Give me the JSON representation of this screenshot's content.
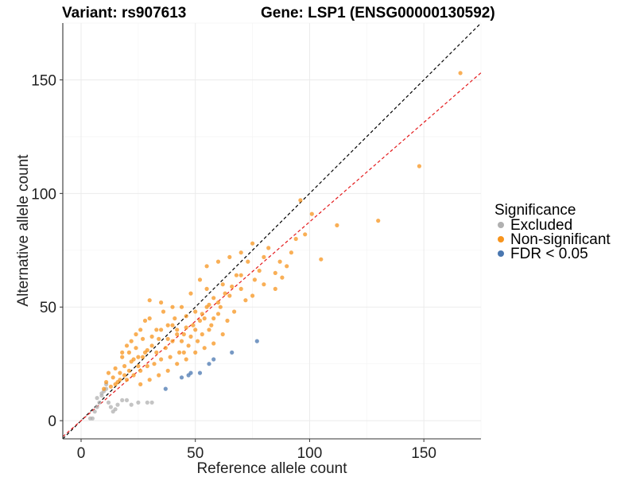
{
  "chart_data": {
    "type": "scatter",
    "title_left": "Variant: rs907613",
    "title_right": "Gene: LSP1 (ENSG00000130592)",
    "xlabel": "Reference allele count",
    "ylabel": "Alternative allele count",
    "xlim": [
      -8,
      175
    ],
    "ylim": [
      -8,
      175
    ],
    "x_ticks": [
      0,
      50,
      100,
      150
    ],
    "y_ticks": [
      0,
      50,
      100,
      150
    ],
    "grid": true,
    "legend": {
      "title": "Significance",
      "position": "right",
      "entries": [
        {
          "label": "Excluded",
          "color": "#b0b0b0"
        },
        {
          "label": "Non-significant",
          "color": "#f7941d"
        },
        {
          "label": "FDR < 0.05",
          "color": "#4a77b0"
        }
      ]
    },
    "reference_lines": [
      {
        "style": "dashed",
        "color": "#000000",
        "slope": 1.0,
        "intercept": 0
      },
      {
        "style": "dashed",
        "color": "#e41a1c",
        "slope": 0.875,
        "intercept": 0
      }
    ],
    "series": [
      {
        "name": "Excluded",
        "color": "#b0b0b0",
        "points": [
          [
            4,
            1
          ],
          [
            5,
            1
          ],
          [
            6,
            4
          ],
          [
            7,
            6
          ],
          [
            8,
            8
          ],
          [
            7,
            10
          ],
          [
            9,
            11
          ],
          [
            10,
            13
          ],
          [
            11,
            16
          ],
          [
            12,
            8
          ],
          [
            13,
            6
          ],
          [
            14,
            4
          ],
          [
            15,
            5
          ],
          [
            16,
            7
          ],
          [
            18,
            9
          ],
          [
            20,
            9
          ],
          [
            22,
            7
          ],
          [
            25,
            8
          ],
          [
            29,
            8
          ],
          [
            31,
            8
          ],
          [
            9,
            12
          ],
          [
            11,
            14
          ]
        ]
      },
      {
        "name": "Non-significant",
        "color": "#f7941d",
        "points": [
          [
            166,
            153
          ],
          [
            148,
            112
          ],
          [
            130,
            88
          ],
          [
            112,
            86
          ],
          [
            105,
            71
          ],
          [
            101,
            91
          ],
          [
            96,
            97
          ],
          [
            98,
            82
          ],
          [
            94,
            80
          ],
          [
            92,
            74
          ],
          [
            90,
            68
          ],
          [
            88,
            63
          ],
          [
            87,
            70
          ],
          [
            85,
            58
          ],
          [
            82,
            76
          ],
          [
            80,
            60
          ],
          [
            78,
            66
          ],
          [
            76,
            62
          ],
          [
            75,
            55
          ],
          [
            73,
            70
          ],
          [
            72,
            53
          ],
          [
            70,
            58
          ],
          [
            68,
            64
          ],
          [
            67,
            48
          ],
          [
            65,
            55
          ],
          [
            64,
            44
          ],
          [
            62,
            60
          ],
          [
            61,
            50
          ],
          [
            60,
            47
          ],
          [
            58,
            54
          ],
          [
            57,
            42
          ],
          [
            56,
            40
          ],
          [
            55,
            58
          ],
          [
            54,
            45
          ],
          [
            53,
            38
          ],
          [
            52,
            62
          ],
          [
            51,
            35
          ],
          [
            50,
            48
          ],
          [
            49,
            42
          ],
          [
            48,
            56
          ],
          [
            47,
            33
          ],
          [
            46,
            46
          ],
          [
            45,
            38
          ],
          [
            44,
            50
          ],
          [
            43,
            30
          ],
          [
            42,
            40
          ],
          [
            41,
            45
          ],
          [
            40,
            35
          ],
          [
            39,
            28
          ],
          [
            38,
            42
          ],
          [
            37,
            32
          ],
          [
            36,
            48
          ],
          [
            35,
            27
          ],
          [
            34,
            36
          ],
          [
            33,
            40
          ],
          [
            32,
            25
          ],
          [
            31,
            33
          ],
          [
            30,
            45
          ],
          [
            29,
            24
          ],
          [
            28,
            30
          ],
          [
            27,
            36
          ],
          [
            26,
            22
          ],
          [
            25,
            28
          ],
          [
            24,
            32
          ],
          [
            23,
            20
          ],
          [
            22,
            26
          ],
          [
            21,
            30
          ],
          [
            20,
            18
          ],
          [
            19,
            24
          ],
          [
            18,
            28
          ],
          [
            17,
            21
          ],
          [
            16,
            17
          ],
          [
            15,
            23
          ],
          [
            14,
            19
          ],
          [
            13,
            15
          ],
          [
            12,
            21
          ],
          [
            11,
            17
          ],
          [
            10,
            14
          ],
          [
            45,
            30
          ],
          [
            48,
            37
          ],
          [
            52,
            44
          ],
          [
            55,
            50
          ],
          [
            58,
            45
          ],
          [
            60,
            52
          ],
          [
            63,
            56
          ],
          [
            66,
            59
          ],
          [
            70,
            64
          ],
          [
            35,
            40
          ],
          [
            38,
            36
          ],
          [
            40,
            42
          ],
          [
            42,
            38
          ],
          [
            44,
            35
          ],
          [
            46,
            41
          ],
          [
            50,
            40
          ],
          [
            53,
            47
          ],
          [
            56,
            51
          ],
          [
            33,
            30
          ],
          [
            31,
            37
          ],
          [
            29,
            31
          ],
          [
            27,
            28
          ],
          [
            25,
            24
          ],
          [
            23,
            27
          ],
          [
            21,
            22
          ],
          [
            19,
            20
          ],
          [
            17,
            18
          ],
          [
            15,
            16
          ],
          [
            30,
            53
          ],
          [
            35,
            52
          ],
          [
            40,
            50
          ],
          [
            28,
            44
          ],
          [
            26,
            40
          ],
          [
            24,
            38
          ],
          [
            22,
            35
          ],
          [
            20,
            33
          ],
          [
            18,
            30
          ],
          [
            55,
            68
          ],
          [
            60,
            70
          ],
          [
            65,
            72
          ],
          [
            70,
            74
          ],
          [
            75,
            78
          ],
          [
            80,
            72
          ],
          [
            85,
            65
          ],
          [
            62,
            38
          ],
          [
            58,
            34
          ],
          [
            54,
            32
          ],
          [
            50,
            30
          ],
          [
            46,
            27
          ],
          [
            42,
            25
          ],
          [
            38,
            22
          ],
          [
            34,
            20
          ],
          [
            30,
            18
          ],
          [
            26,
            16
          ]
        ]
      },
      {
        "name": "FDR < 0.05",
        "color": "#4a77b0",
        "points": [
          [
            77,
            35
          ],
          [
            66,
            30
          ],
          [
            58,
            27
          ],
          [
            56,
            25
          ],
          [
            52,
            21
          ],
          [
            47,
            20
          ],
          [
            44,
            19
          ],
          [
            37,
            14
          ],
          [
            48,
            21
          ]
        ]
      }
    ]
  }
}
